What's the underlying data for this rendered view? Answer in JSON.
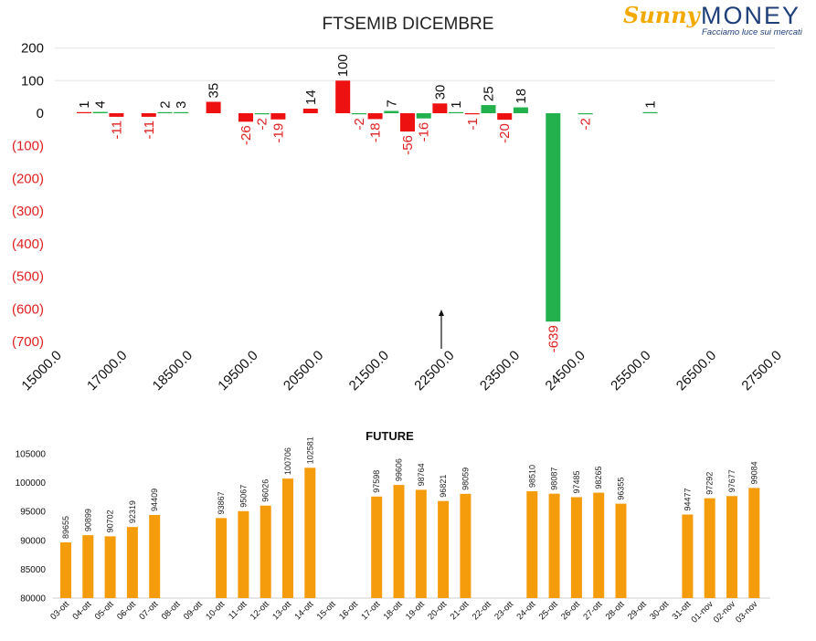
{
  "logo": {
    "word1": "Sunny",
    "word2": "MONEY",
    "tagline": "Facciamo luce sui mercati"
  },
  "chart_data": [
    {
      "type": "bar",
      "title": "FTSEMIB DICEMBRE",
      "ylim": [
        -700,
        200
      ],
      "yticks": [
        "200",
        "100",
        "0",
        "(100)",
        "(200)",
        "(300)",
        "(400)",
        "(500)",
        "(600)",
        "(700)"
      ],
      "xtick_labels": [
        "15000.0",
        "17000.0",
        "18500.0",
        "19500.0",
        "20500.0",
        "21500.0",
        "22500.0",
        "23500.0",
        "24500.0",
        "25500.0",
        "26500.0",
        "27500.0"
      ],
      "positive_color": "#22b14c",
      "negative_color": "#ee1111",
      "annotation": "arrow pointing up near 22500",
      "bars": [
        {
          "x": 0,
          "value": 1,
          "color": "neg"
        },
        {
          "x": 1,
          "value": 4,
          "color": "pos"
        },
        {
          "x": 2,
          "value": -11,
          "color": "neg"
        },
        {
          "x": 4,
          "value": -11,
          "color": "neg"
        },
        {
          "x": 5,
          "value": 2,
          "color": "pos"
        },
        {
          "x": 6,
          "value": 3,
          "color": "pos"
        },
        {
          "x": 8,
          "value": 35,
          "color": "neg"
        },
        {
          "x": 10,
          "value": -26,
          "color": "neg"
        },
        {
          "x": 11,
          "value": -2,
          "color": "pos"
        },
        {
          "x": 12,
          "value": -19,
          "color": "neg"
        },
        {
          "x": 14,
          "value": 14,
          "color": "neg"
        },
        {
          "x": 16,
          "value": 100,
          "color": "neg"
        },
        {
          "x": 17,
          "value": -2,
          "color": "pos"
        },
        {
          "x": 18,
          "value": -18,
          "color": "neg"
        },
        {
          "x": 19,
          "value": 7,
          "color": "pos"
        },
        {
          "x": 20,
          "value": -56,
          "color": "neg"
        },
        {
          "x": 21,
          "value": -16,
          "color": "pos"
        },
        {
          "x": 22,
          "value": 30,
          "color": "neg"
        },
        {
          "x": 23,
          "value": 1,
          "color": "pos"
        },
        {
          "x": 24,
          "value": -1,
          "color": "neg"
        },
        {
          "x": 25,
          "value": 25,
          "color": "pos"
        },
        {
          "x": 26,
          "value": -20,
          "color": "neg"
        },
        {
          "x": 27,
          "value": 18,
          "color": "pos"
        },
        {
          "x": 29,
          "value": -639,
          "color": "pos"
        },
        {
          "x": 31,
          "value": -2,
          "color": "pos"
        },
        {
          "x": 35,
          "value": 1,
          "color": "pos"
        }
      ]
    },
    {
      "type": "bar",
      "title": "FUTURE",
      "ylim": [
        80000,
        105000
      ],
      "yticks": [
        "105000",
        "100000",
        "95000",
        "90000",
        "85000",
        "80000"
      ],
      "bar_color": "#f59c0c",
      "categories": [
        "03-ott",
        "04-ott",
        "05-ott",
        "06-ott",
        "07-ott",
        "08-ott",
        "09-ott",
        "10-ott",
        "11-ott",
        "12-ott",
        "13-ott",
        "14-ott",
        "15-ott",
        "16-ott",
        "17-ott",
        "18-ott",
        "19-ott",
        "20-ott",
        "21-ott",
        "22-ott",
        "23-ott",
        "24-ott",
        "25-ott",
        "26-ott",
        "27-ott",
        "28-ott",
        "29-ott",
        "30-ott",
        "31-ott",
        "01-nov",
        "02-nov",
        "03-nov"
      ],
      "values": [
        89655,
        90899,
        90702,
        92319,
        94409,
        null,
        null,
        93867,
        95067,
        96026,
        100706,
        102581,
        null,
        null,
        97598,
        99606,
        98764,
        96821,
        98059,
        null,
        null,
        98510,
        98087,
        97485,
        98265,
        96355,
        null,
        null,
        94477,
        97292,
        97677,
        99084
      ]
    }
  ]
}
